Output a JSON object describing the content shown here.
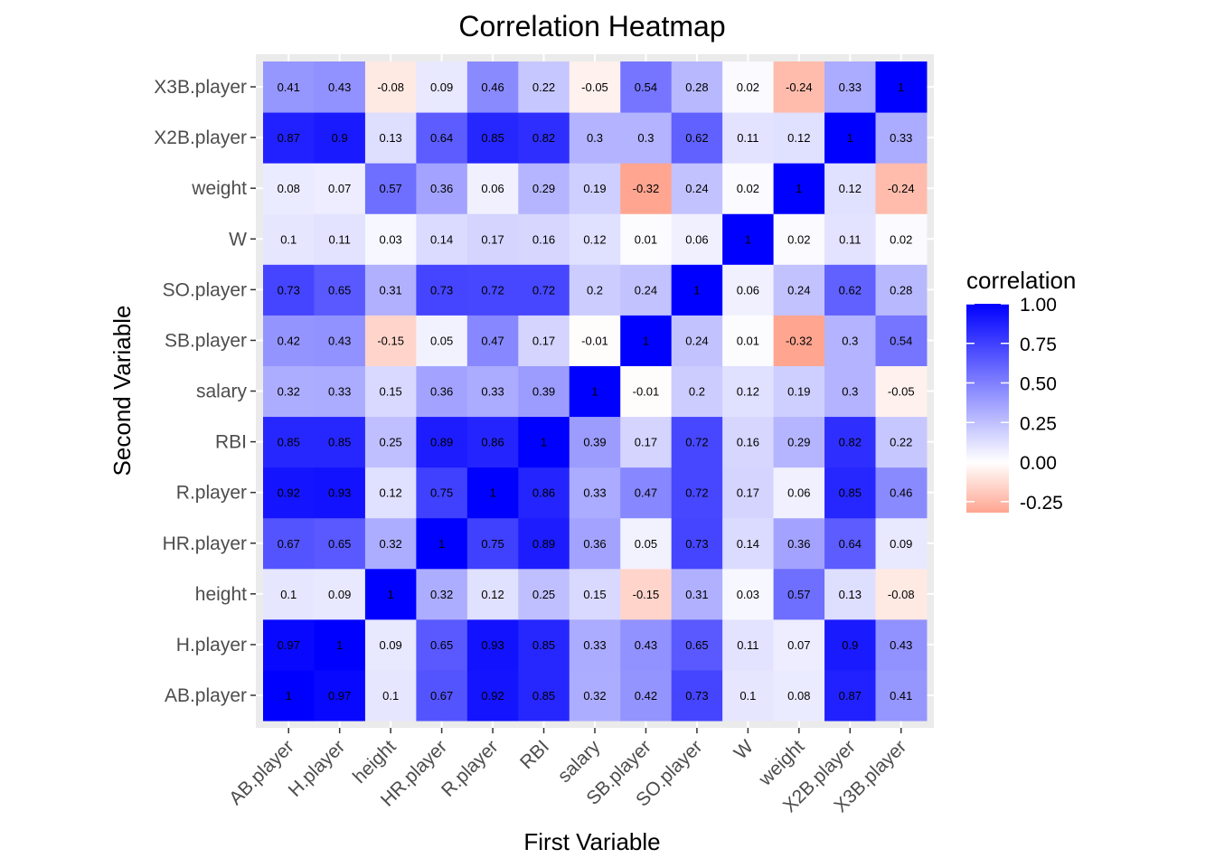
{
  "chart_data": {
    "type": "heatmap",
    "title": "Correlation Heatmap",
    "xlabel": "First Variable",
    "ylabel": "Second Variable",
    "x_categories": [
      "AB.player",
      "H.player",
      "height",
      "HR.player",
      "R.player",
      "RBI",
      "salary",
      "SB.player",
      "SO.player",
      "W",
      "weight",
      "X2B.player",
      "X3B.player"
    ],
    "y_categories": [
      "AB.player",
      "H.player",
      "height",
      "HR.player",
      "R.player",
      "RBI",
      "salary",
      "SB.player",
      "SO.player",
      "W",
      "weight",
      "X2B.player",
      "X3B.player"
    ],
    "values": [
      [
        1,
        0.97,
        0.1,
        0.67,
        0.92,
        0.85,
        0.32,
        0.42,
        0.73,
        0.1,
        0.08,
        0.87,
        0.41
      ],
      [
        0.97,
        1,
        0.09,
        0.65,
        0.93,
        0.85,
        0.33,
        0.43,
        0.65,
        0.11,
        0.07,
        0.9,
        0.43
      ],
      [
        0.1,
        0.09,
        1,
        0.32,
        0.12,
        0.25,
        0.15,
        -0.15,
        0.31,
        0.03,
        0.57,
        0.13,
        -0.08
      ],
      [
        0.67,
        0.65,
        0.32,
        1,
        0.75,
        0.89,
        0.36,
        0.05,
        0.73,
        0.14,
        0.36,
        0.64,
        0.09
      ],
      [
        0.92,
        0.93,
        0.12,
        0.75,
        1,
        0.86,
        0.33,
        0.47,
        0.72,
        0.17,
        0.06,
        0.85,
        0.46
      ],
      [
        0.85,
        0.85,
        0.25,
        0.89,
        0.86,
        1,
        0.39,
        0.17,
        0.72,
        0.16,
        0.29,
        0.82,
        0.22
      ],
      [
        0.32,
        0.33,
        0.15,
        0.36,
        0.33,
        0.39,
        1,
        -0.01,
        0.2,
        0.12,
        0.19,
        0.3,
        -0.05
      ],
      [
        0.42,
        0.43,
        -0.15,
        0.05,
        0.47,
        0.17,
        -0.01,
        1,
        0.24,
        0.01,
        -0.32,
        0.3,
        0.54
      ],
      [
        0.73,
        0.65,
        0.31,
        0.73,
        0.72,
        0.72,
        0.2,
        0.24,
        1,
        0.06,
        0.24,
        0.62,
        0.28
      ],
      [
        0.1,
        0.11,
        0.03,
        0.14,
        0.17,
        0.16,
        0.12,
        0.01,
        0.06,
        1,
        0.02,
        0.11,
        0.02
      ],
      [
        0.08,
        0.07,
        0.57,
        0.36,
        0.06,
        0.29,
        0.19,
        -0.32,
        0.24,
        0.02,
        1,
        0.12,
        -0.24
      ],
      [
        0.87,
        0.9,
        0.13,
        0.64,
        0.85,
        0.82,
        0.3,
        0.3,
        0.62,
        0.11,
        0.12,
        1,
        0.33
      ],
      [
        0.41,
        0.43,
        -0.08,
        0.09,
        0.46,
        0.22,
        -0.05,
        0.54,
        0.28,
        0.02,
        -0.24,
        0.33,
        1
      ]
    ],
    "value_range": [
      -0.32,
      1
    ],
    "colors": {
      "low": "#ffa590",
      "mid": "#ffffff",
      "high": "#0000ff",
      "panel_bg": "#ebebeb",
      "gridline": "#ffffff"
    },
    "legend": {
      "title": "correlation",
      "placement": "right",
      "ticks": [
        1.0,
        0.75,
        0.5,
        0.25,
        0.0,
        -0.25
      ],
      "tick_labels": [
        "1.00",
        "0.75",
        "0.50",
        "0.25",
        "0.00",
        "-0.25"
      ]
    },
    "grid": true
  }
}
